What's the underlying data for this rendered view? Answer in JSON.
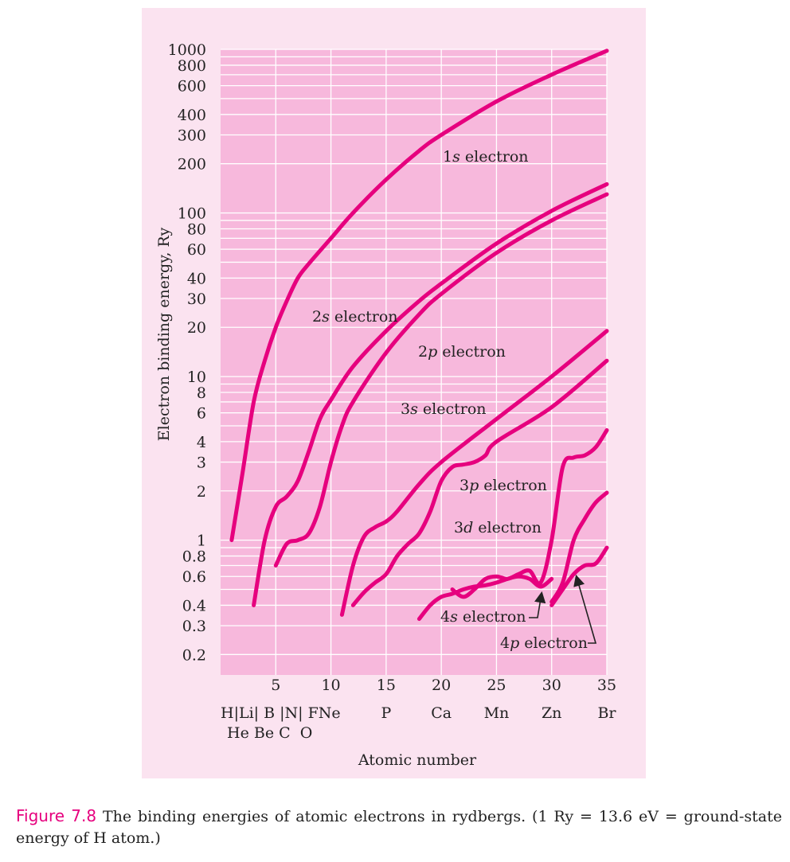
{
  "colors": {
    "panel": "#fbe3f0",
    "plot": "#f7b8dc",
    "grid": "#ffffff",
    "curve": "#e6007e",
    "text": "#222222",
    "caption_label": "#e6007e"
  },
  "chart_data": {
    "type": "line",
    "title": "",
    "xlabel": "Atomic number",
    "ylabel": "Electron binding energy, Ry",
    "xlim": [
      0,
      35
    ],
    "ylim": [
      0.15,
      1000
    ],
    "yscale": "log",
    "grid": true,
    "xticks": [
      5,
      10,
      15,
      20,
      25,
      30,
      35
    ],
    "yticks": [
      0.2,
      0.3,
      0.4,
      0.6,
      0.8,
      1,
      2,
      3,
      4,
      6,
      8,
      10,
      20,
      30,
      40,
      60,
      80,
      100,
      200,
      300,
      400,
      600,
      800,
      1000
    ],
    "ytick_labels": [
      "0.2",
      "0.3",
      "0.4",
      "0.6",
      "0.8",
      "1",
      "2",
      "3",
      "4",
      "6",
      "8",
      "10",
      "20",
      "30",
      "40",
      "60",
      "80",
      "100",
      "200",
      "300",
      "400",
      "600",
      "800",
      "1000"
    ],
    "element_row1": "H|Li| B |N| FNe",
    "element_row2": "He Be C  O",
    "element_markers": [
      {
        "label": "P",
        "x": 15
      },
      {
        "label": "Ca",
        "x": 20
      },
      {
        "label": "Mn",
        "x": 25
      },
      {
        "label": "Zn",
        "x": 30
      },
      {
        "label": "Br",
        "x": 35
      }
    ],
    "series": [
      {
        "name": "1s electron",
        "x": [
          1,
          2,
          3,
          4,
          5,
          6,
          7,
          8,
          10,
          12,
          15,
          18,
          20,
          25,
          30,
          35
        ],
        "y": [
          1.0,
          2.6,
          7.0,
          12.5,
          20,
          29,
          40,
          49,
          70,
          100,
          160,
          240,
          300,
          480,
          700,
          980
        ]
      },
      {
        "name": "2s electron",
        "x": [
          3,
          4,
          5,
          6,
          7,
          8,
          9,
          10,
          12,
          15,
          18,
          20,
          25,
          30,
          35
        ],
        "y": [
          0.4,
          1.0,
          1.6,
          1.85,
          2.3,
          3.5,
          5.5,
          7.2,
          11.5,
          19,
          29,
          37,
          65,
          103,
          150
        ]
      },
      {
        "name": "2p electron",
        "x": [
          5,
          6,
          7,
          8,
          9,
          10,
          11,
          12,
          15,
          18,
          20,
          25,
          30,
          35
        ],
        "y": [
          0.7,
          0.95,
          1.0,
          1.1,
          1.6,
          3.0,
          5.0,
          7.0,
          14,
          24,
          32,
          57,
          90,
          130
        ]
      },
      {
        "name": "3s electron",
        "x": [
          11,
          12,
          13,
          14,
          15,
          16,
          18,
          20,
          25,
          30,
          35
        ],
        "y": [
          0.35,
          0.7,
          1.05,
          1.2,
          1.3,
          1.5,
          2.2,
          3.0,
          5.5,
          10,
          19
        ]
      },
      {
        "name": "3p electron",
        "x": [
          12,
          13,
          14,
          15,
          16,
          17,
          18,
          19,
          20,
          21,
          22,
          23,
          24,
          25,
          30,
          35
        ],
        "y": [
          0.4,
          0.48,
          0.55,
          0.62,
          0.8,
          0.95,
          1.1,
          1.5,
          2.3,
          2.8,
          2.9,
          3.0,
          3.3,
          4.0,
          6.5,
          12.5
        ]
      },
      {
        "name": "3d electron",
        "x": [
          21,
          22,
          23,
          24,
          25,
          26,
          27,
          28,
          29,
          30,
          31,
          32,
          33,
          34,
          35
        ],
        "y": [
          0.5,
          0.45,
          0.5,
          0.58,
          0.6,
          0.58,
          0.62,
          0.65,
          0.55,
          1.0,
          2.8,
          3.2,
          3.3,
          3.7,
          4.7
        ]
      },
      {
        "name": "4s electron",
        "x": [
          18,
          19,
          20,
          21,
          22,
          23,
          24,
          25,
          26,
          27,
          28,
          29,
          30
        ],
        "y": [
          0.33,
          0.4,
          0.45,
          0.47,
          0.5,
          0.52,
          0.53,
          0.55,
          0.58,
          0.6,
          0.58,
          0.52,
          0.58
        ]
      },
      {
        "name": "4p electron",
        "x": [
          30,
          31,
          32,
          33,
          34,
          35
        ],
        "y": [
          0.42,
          0.55,
          1.0,
          1.35,
          1.7,
          1.95
        ]
      },
      {
        "name": "4p tail",
        "x": [
          30,
          31,
          32,
          33,
          34,
          35
        ],
        "y": [
          0.4,
          0.5,
          0.62,
          0.7,
          0.72,
          0.9
        ]
      }
    ],
    "annotations": [
      {
        "name": "1s electron",
        "italic": "s",
        "prefix": "1",
        "suffix": " electron"
      },
      {
        "name": "2s electron",
        "italic": "s",
        "prefix": "2",
        "suffix": " electron"
      },
      {
        "name": "2p electron",
        "italic": "p",
        "prefix": "2",
        "suffix": " electron"
      },
      {
        "name": "3s electron",
        "italic": "s",
        "prefix": "3",
        "suffix": " electron"
      },
      {
        "name": "3p electron",
        "italic": "p",
        "prefix": "3",
        "suffix": " electron"
      },
      {
        "name": "3d electron",
        "italic": "d",
        "prefix": "3",
        "suffix": " electron"
      },
      {
        "name": "4s electron",
        "italic": "s",
        "prefix": "4",
        "suffix": " electron"
      },
      {
        "name": "4p electron",
        "italic": "p",
        "prefix": "4",
        "suffix": " electron"
      }
    ]
  },
  "caption": {
    "label": "Figure 7.8",
    "text": "The binding energies of atomic electrons in rydbergs. (1 Ry = 13.6 eV = ground-state energy of H atom.)"
  }
}
